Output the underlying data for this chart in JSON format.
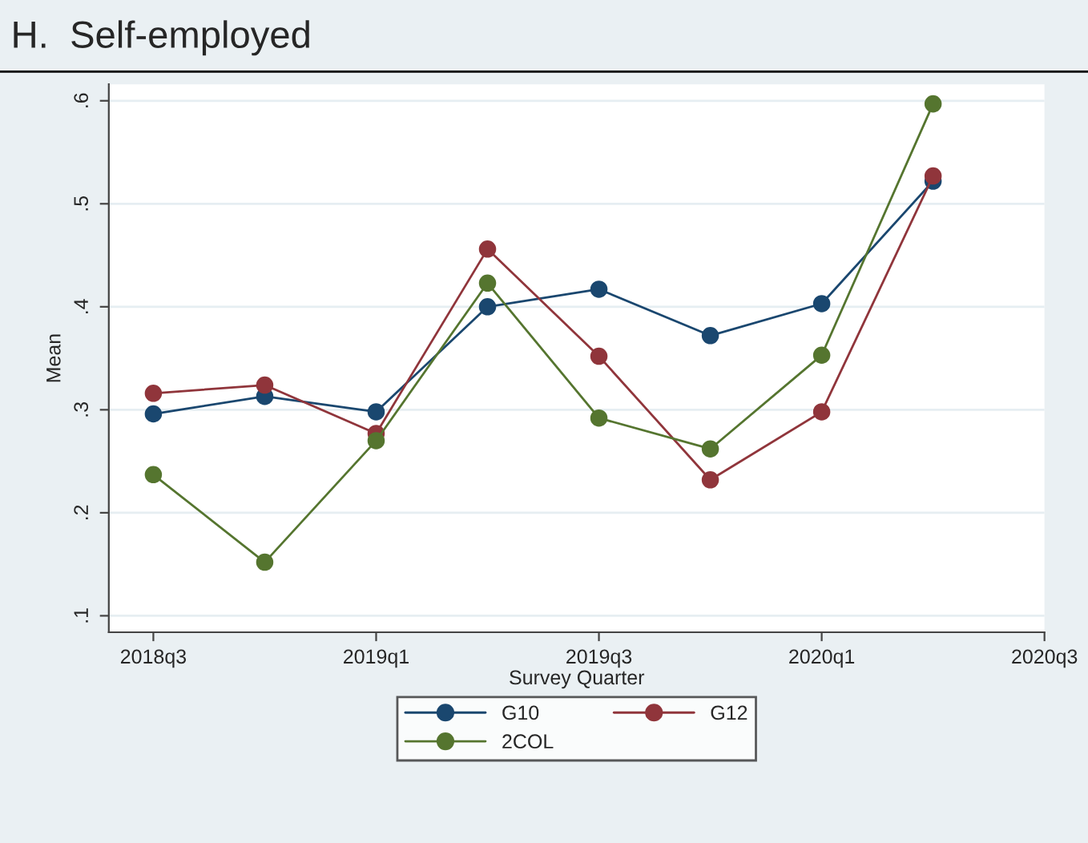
{
  "chart_data": {
    "type": "line",
    "title": "H.  Self-employed",
    "xlabel": "Survey Quarter",
    "ylabel": "Mean",
    "categories": [
      "2018q3",
      null,
      "2019q1",
      null,
      "2019q3",
      null,
      "2020q1",
      null,
      "2020q3"
    ],
    "ylim": [
      0.084,
      0.616
    ],
    "yticks": [
      {
        "value": 0.1,
        "label": ".1"
      },
      {
        "value": 0.2,
        "label": ".2"
      },
      {
        "value": 0.3,
        "label": ".3"
      },
      {
        "value": 0.4,
        "label": ".4"
      },
      {
        "value": 0.5,
        "label": ".5"
      },
      {
        "value": 0.6,
        "label": ".6"
      }
    ],
    "grid": "y",
    "legend": "bottom",
    "marker": "circle",
    "line_style": "solid",
    "series": [
      {
        "name": "G10",
        "color": "#1a476f",
        "values": [
          0.296,
          0.313,
          0.298,
          0.4,
          0.417,
          0.372,
          0.403,
          0.522,
          null
        ]
      },
      {
        "name": "G12",
        "color": "#90353b",
        "values": [
          0.316,
          0.324,
          0.277,
          0.456,
          0.352,
          0.232,
          0.298,
          0.527,
          null
        ]
      },
      {
        "name": "2COL",
        "color": "#55752f",
        "values": [
          0.237,
          0.152,
          0.27,
          0.423,
          0.292,
          0.262,
          0.353,
          0.597,
          null
        ]
      }
    ]
  }
}
